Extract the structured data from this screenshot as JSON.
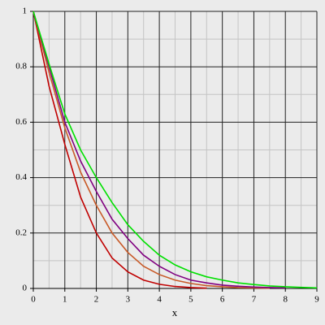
{
  "chart_data": {
    "type": "line",
    "x_label": "x",
    "x": [
      0,
      0.5,
      1,
      1.5,
      2,
      2.5,
      3,
      3.5,
      4,
      4.5,
      5,
      5.5,
      6,
      6.5,
      7,
      7.5,
      8,
      8.5,
      9
    ],
    "series": [
      {
        "color": "#c00000",
        "values": [
          1,
          0.73,
          0.52,
          0.33,
          0.2,
          0.11,
          0.06,
          0.03,
          0.015,
          0.007,
          0.003,
          0.001,
          null,
          null,
          null,
          null,
          null,
          null,
          null
        ]
      },
      {
        "color": "#c85a28",
        "values": [
          1,
          0.78,
          0.58,
          0.42,
          0.3,
          0.2,
          0.13,
          0.08,
          0.05,
          0.03,
          0.018,
          0.01,
          0.006,
          0.003,
          0.002,
          0.001,
          null,
          null,
          null
        ]
      },
      {
        "color": "#800080",
        "values": [
          1,
          0.8,
          0.6,
          0.46,
          0.35,
          0.25,
          0.18,
          0.12,
          0.08,
          0.05,
          0.03,
          0.02,
          0.012,
          0.008,
          0.005,
          0.003,
          0.002,
          null,
          null
        ]
      },
      {
        "color": "#00e000",
        "values": [
          1,
          0.81,
          0.63,
          0.5,
          0.4,
          0.31,
          0.23,
          0.17,
          0.12,
          0.085,
          0.06,
          0.042,
          0.03,
          0.02,
          0.014,
          0.009,
          0.006,
          0.004,
          0.002
        ]
      }
    ],
    "xlim": [
      0,
      9
    ],
    "ylim": [
      0,
      1
    ],
    "xticks": [
      0,
      1,
      2,
      3,
      4,
      5,
      6,
      7,
      8,
      9
    ],
    "yticks": [
      0,
      0.2,
      0.4,
      0.6,
      0.8,
      1
    ],
    "xminor": [
      0.5,
      1.5,
      2.5,
      3.5,
      4.5,
      5.5,
      6.5,
      7.5,
      8.5
    ],
    "yminor": [
      0.1,
      0.3,
      0.5,
      0.7,
      0.9
    ],
    "grid": true
  }
}
